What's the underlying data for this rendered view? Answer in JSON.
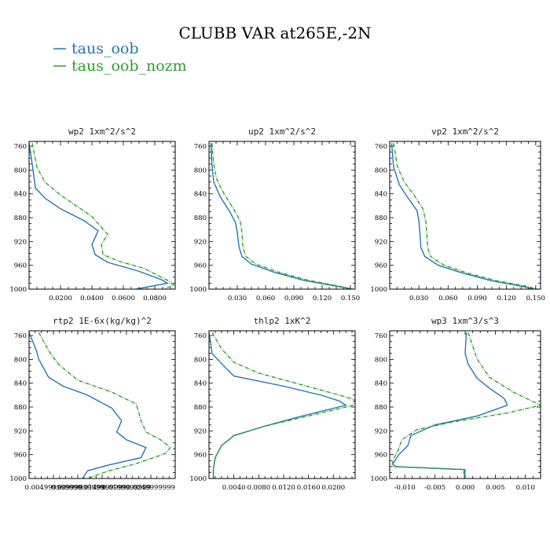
{
  "figure": {
    "title": "CLUBB VAR at265E,-2N",
    "legend": [
      {
        "label": "taus_oob",
        "color": "#1f77b4"
      },
      {
        "label": "taus_oob_nozm",
        "color": "#2ca02c"
      }
    ]
  },
  "chart_data": [
    {
      "type": "line",
      "title": "wp2  1xm^2/s^2",
      "xlabel": "",
      "ylabel": "",
      "xlim": [
        0.0,
        0.093
      ],
      "ylim": [
        1000,
        752
      ],
      "xticks": [
        0.02,
        0.04,
        0.06,
        0.08
      ],
      "xtick_labels": [
        "0.0200",
        "0.0400",
        "0.0600",
        "0.0800"
      ],
      "yticks": [
        760,
        800,
        840,
        880,
        920,
        960,
        1000
      ],
      "series": [
        {
          "name": "taus_oob",
          "color": "#1f77b4",
          "dashed": false,
          "points": [
            [
              0.0,
              755
            ],
            [
              0.002,
              790
            ],
            [
              0.004,
              830
            ],
            [
              0.01,
              847
            ],
            [
              0.02,
              865
            ],
            [
              0.035,
              885
            ],
            [
              0.044,
              902
            ],
            [
              0.04,
              925
            ],
            [
              0.042,
              942
            ],
            [
              0.05,
              955
            ],
            [
              0.07,
              970
            ],
            [
              0.085,
              985
            ],
            [
              0.088,
              990
            ],
            [
              0.068,
              1000
            ]
          ]
        },
        {
          "name": "taus_oob_nozm",
          "color": "#2ca02c",
          "dashed": true,
          "points": [
            [
              0.002,
              755
            ],
            [
              0.005,
              795
            ],
            [
              0.01,
              820
            ],
            [
              0.02,
              842
            ],
            [
              0.03,
              860
            ],
            [
              0.04,
              878
            ],
            [
              0.05,
              908
            ],
            [
              0.046,
              925
            ],
            [
              0.047,
              942
            ],
            [
              0.057,
              953
            ],
            [
              0.073,
              965
            ],
            [
              0.088,
              985
            ],
            [
              0.092,
              993
            ],
            [
              0.086,
              1000
            ]
          ]
        }
      ]
    },
    {
      "type": "line",
      "title": "up2  1xm^2/s^2",
      "xlabel": "",
      "ylabel": "",
      "xlim": [
        0.0,
        0.155
      ],
      "ylim": [
        1000,
        752
      ],
      "xticks": [
        0.03,
        0.06,
        0.09,
        0.12,
        0.15
      ],
      "xtick_labels": [
        "0.030",
        "0.060",
        "0.090",
        "0.120",
        "0.150"
      ],
      "yticks": [
        760,
        800,
        840,
        880,
        920,
        960,
        1000
      ],
      "series": [
        {
          "name": "taus_oob",
          "color": "#1f77b4",
          "dashed": false,
          "points": [
            [
              0.002,
              755
            ],
            [
              0.003,
              790
            ],
            [
              0.005,
              820
            ],
            [
              0.012,
              845
            ],
            [
              0.022,
              870
            ],
            [
              0.028,
              888
            ],
            [
              0.03,
              905
            ],
            [
              0.032,
              930
            ],
            [
              0.035,
              945
            ],
            [
              0.045,
              958
            ],
            [
              0.07,
              972
            ],
            [
              0.1,
              985
            ],
            [
              0.135,
              995
            ],
            [
              0.152,
              1000
            ]
          ]
        },
        {
          "name": "taus_oob_nozm",
          "color": "#2ca02c",
          "dashed": true,
          "points": [
            [
              0.003,
              755
            ],
            [
              0.005,
              790
            ],
            [
              0.008,
              815
            ],
            [
              0.016,
              840
            ],
            [
              0.026,
              865
            ],
            [
              0.033,
              885
            ],
            [
              0.035,
              905
            ],
            [
              0.036,
              930
            ],
            [
              0.039,
              945
            ],
            [
              0.05,
              958
            ],
            [
              0.075,
              972
            ],
            [
              0.105,
              985
            ],
            [
              0.138,
              995
            ],
            [
              0.153,
              1000
            ]
          ]
        }
      ]
    },
    {
      "type": "line",
      "title": "vp2  1xm^2/s^2",
      "xlabel": "",
      "ylabel": "",
      "xlim": [
        0.0,
        0.155
      ],
      "ylim": [
        1000,
        752
      ],
      "xticks": [
        0.03,
        0.06,
        0.09,
        0.12,
        0.15
      ],
      "xtick_labels": [
        "0.030",
        "0.060",
        "0.090",
        "0.120",
        "0.150"
      ],
      "yticks": [
        760,
        800,
        840,
        880,
        920,
        960,
        1000
      ],
      "series": [
        {
          "name": "taus_oob",
          "color": "#1f77b4",
          "dashed": false,
          "points": [
            [
              0.002,
              755
            ],
            [
              0.004,
              795
            ],
            [
              0.01,
              825
            ],
            [
              0.018,
              845
            ],
            [
              0.028,
              868
            ],
            [
              0.03,
              885
            ],
            [
              0.031,
              905
            ],
            [
              0.032,
              930
            ],
            [
              0.036,
              945
            ],
            [
              0.05,
              960
            ],
            [
              0.075,
              973
            ],
            [
              0.105,
              986
            ],
            [
              0.135,
              995
            ],
            [
              0.148,
              1000
            ]
          ]
        },
        {
          "name": "taus_oob_nozm",
          "color": "#2ca02c",
          "dashed": true,
          "points": [
            [
              0.004,
              755
            ],
            [
              0.008,
              795
            ],
            [
              0.015,
              820
            ],
            [
              0.025,
              842
            ],
            [
              0.034,
              865
            ],
            [
              0.037,
              885
            ],
            [
              0.038,
              905
            ],
            [
              0.039,
              930
            ],
            [
              0.042,
              945
            ],
            [
              0.056,
              960
            ],
            [
              0.08,
              973
            ],
            [
              0.11,
              986
            ],
            [
              0.14,
              995
            ],
            [
              0.152,
              1000
            ]
          ]
        }
      ]
    },
    {
      "type": "line",
      "title": "rtp2  1E-6x(kg/kg)^2",
      "xlabel": "",
      "ylabel": "",
      "xlim": [
        0.0,
        0.03
      ],
      "ylim": [
        1000,
        752
      ],
      "xticks": [
        0.005,
        0.01,
        0.015,
        0.02,
        0.025
      ],
      "xtick_labels": [
        "0.004999999999",
        "0.00999999999",
        "0.0149999999",
        "0.0199999999",
        "0.0249999999"
      ],
      "yticks": [
        760,
        800,
        840,
        880,
        920,
        960,
        1000
      ],
      "series": [
        {
          "name": "taus_oob",
          "color": "#1f77b4",
          "dashed": false,
          "points": [
            [
              0.0,
              755
            ],
            [
              0.0015,
              785
            ],
            [
              0.002,
              800
            ],
            [
              0.004,
              830
            ],
            [
              0.007,
              845
            ],
            [
              0.012,
              860
            ],
            [
              0.017,
              882
            ],
            [
              0.019,
              903
            ],
            [
              0.018,
              922
            ],
            [
              0.02,
              935
            ],
            [
              0.024,
              948
            ],
            [
              0.023,
              965
            ],
            [
              0.016,
              978
            ],
            [
              0.012,
              987
            ],
            [
              0.011,
              1000
            ]
          ]
        },
        {
          "name": "taus_oob_nozm",
          "color": "#2ca02c",
          "dashed": true,
          "points": [
            [
              0.002,
              755
            ],
            [
              0.004,
              785
            ],
            [
              0.006,
              808
            ],
            [
              0.01,
              835
            ],
            [
              0.017,
              855
            ],
            [
              0.022,
              875
            ],
            [
              0.023,
              903
            ],
            [
              0.024,
              922
            ],
            [
              0.027,
              935
            ],
            [
              0.029,
              948
            ],
            [
              0.028,
              958
            ],
            [
              0.022,
              975
            ],
            [
              0.016,
              988
            ],
            [
              0.012,
              1000
            ]
          ]
        }
      ]
    },
    {
      "type": "line",
      "title": "thlp2  1xK^2",
      "xlabel": "",
      "ylabel": "",
      "xlim": [
        0.0,
        0.0235
      ],
      "ylim": [
        1000,
        752
      ],
      "xticks": [
        0.004,
        0.008,
        0.012,
        0.016,
        0.02
      ],
      "xtick_labels": [
        "0.0040",
        "0.0080",
        "0.0120",
        "0.0160",
        "0.0200"
      ],
      "yticks": [
        760,
        800,
        840,
        880,
        920,
        960,
        1000
      ],
      "series": [
        {
          "name": "taus_oob",
          "color": "#1f77b4",
          "dashed": false,
          "points": [
            [
              0.0,
              755
            ],
            [
              0.0005,
              790
            ],
            [
              0.002,
              807
            ],
            [
              0.004,
              828
            ],
            [
              0.012,
              845
            ],
            [
              0.018,
              860
            ],
            [
              0.021,
              870
            ],
            [
              0.022,
              877
            ],
            [
              0.015,
              895
            ],
            [
              0.009,
              912
            ],
            [
              0.004,
              928
            ],
            [
              0.002,
              945
            ],
            [
              0.001,
              965
            ],
            [
              0.0007,
              985
            ],
            [
              0.0007,
              1000
            ]
          ]
        },
        {
          "name": "taus_oob_nozm",
          "color": "#2ca02c",
          "dashed": true,
          "points": [
            [
              0.0005,
              755
            ],
            [
              0.002,
              782
            ],
            [
              0.004,
              805
            ],
            [
              0.008,
              823
            ],
            [
              0.015,
              843
            ],
            [
              0.021,
              860
            ],
            [
              0.0235,
              868
            ],
            [
              0.0232,
              877
            ],
            [
              0.016,
              895
            ],
            [
              0.009,
              912
            ],
            [
              0.004,
              928
            ],
            [
              0.002,
              945
            ],
            [
              0.001,
              965
            ],
            [
              0.0007,
              985
            ],
            [
              0.0007,
              1000
            ]
          ]
        }
      ]
    },
    {
      "type": "line",
      "title": "wp3  1xm^3/s^3",
      "xlabel": "",
      "ylabel": "",
      "xlim": [
        -0.0125,
        0.0125
      ],
      "ylim": [
        1000,
        752
      ],
      "xticks": [
        -0.01,
        -0.005,
        0.0,
        0.005,
        0.01
      ],
      "xtick_labels": [
        "-0.010",
        "-0.005",
        "0.000",
        "0.005",
        "0.010"
      ],
      "yticks": [
        760,
        800,
        840,
        880,
        920,
        960,
        1000
      ],
      "series": [
        {
          "name": "taus_oob",
          "color": "#1f77b4",
          "dashed": false,
          "points": [
            [
              0.0002,
              755
            ],
            [
              0.0,
              790
            ],
            [
              0.0005,
              808
            ],
            [
              0.002,
              832
            ],
            [
              0.004,
              848
            ],
            [
              0.0065,
              866
            ],
            [
              0.007,
              877
            ],
            [
              0.002,
              895
            ],
            [
              -0.005,
              910
            ],
            [
              -0.009,
              928
            ],
            [
              -0.0095,
              945
            ],
            [
              -0.011,
              960
            ],
            [
              -0.012,
              976
            ],
            [
              -0.0115,
              980
            ],
            [
              0.0,
              985
            ],
            [
              -0.0001,
              1000
            ]
          ]
        },
        {
          "name": "taus_oob_nozm",
          "color": "#2ca02c",
          "dashed": true,
          "points": [
            [
              0.0005,
              755
            ],
            [
              0.002,
              800
            ],
            [
              0.004,
              830
            ],
            [
              0.008,
              855
            ],
            [
              0.0125,
              877
            ],
            [
              0.007,
              890
            ],
            [
              -0.002,
              905
            ],
            [
              -0.008,
              918
            ],
            [
              -0.0105,
              935
            ],
            [
              -0.011,
              950
            ],
            [
              -0.012,
              970
            ],
            [
              -0.012,
              980
            ],
            [
              -0.0002,
              985
            ],
            [
              -0.0002,
              1000
            ]
          ]
        }
      ]
    }
  ]
}
